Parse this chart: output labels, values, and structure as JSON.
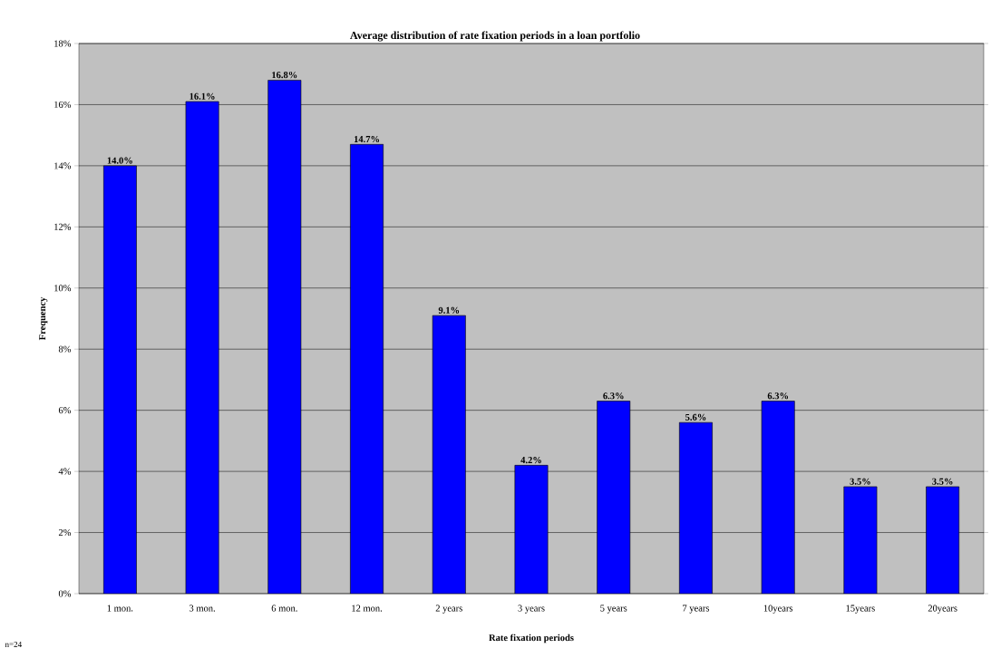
{
  "chart_data": {
    "type": "bar",
    "title": "Average distribution of rate fixation periods in a loan portfolio",
    "xlabel": "Rate fixation periods",
    "ylabel": "Frequency",
    "categories": [
      "1 mon.",
      "3 mon.",
      "6 mon.",
      "12 mon.",
      "2 years",
      "3 years",
      "5 years",
      "7 years",
      "10years",
      "15years",
      "20years"
    ],
    "values": [
      14.0,
      16.1,
      16.8,
      14.7,
      9.1,
      4.2,
      6.3,
      5.6,
      6.3,
      3.5,
      3.5
    ],
    "value_labels": [
      "14.0%",
      "16.1%",
      "16.8%",
      "14.7%",
      "9.1%",
      "4.2%",
      "6.3%",
      "5.6%",
      "6.3%",
      "3.5%",
      "3.5%"
    ],
    "color": "#0000ff",
    "ylim": [
      0,
      18
    ],
    "yticks": [
      {
        "value": 0,
        "label": "0%"
      },
      {
        "value": 2,
        "label": "2%"
      },
      {
        "value": 4,
        "label": "4%"
      },
      {
        "value": 6,
        "label": "6%"
      },
      {
        "value": 8,
        "label": "8%"
      },
      {
        "value": 10,
        "label": "10%"
      },
      {
        "value": 12,
        "label": "12%"
      },
      {
        "value": 14,
        "label": "14%"
      },
      {
        "value": 16,
        "label": "16%"
      },
      {
        "value": 18,
        "label": "18%"
      }
    ],
    "grid": "y",
    "annotations": [
      "n=24"
    ]
  }
}
